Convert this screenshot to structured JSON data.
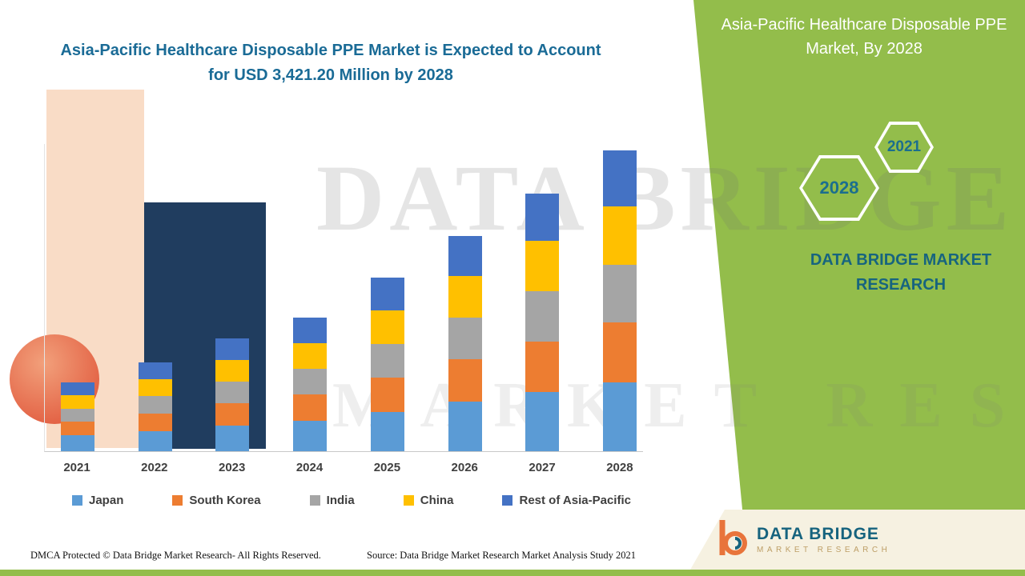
{
  "colors": {
    "green_bg": "#93BD4B",
    "teal": "#1A6B96",
    "cream": "#F6F1E1",
    "axis_label": "#3F3F3F"
  },
  "header": {
    "left_title": "Asia-Pacific Healthcare Disposable PPE Market is Expected to Account for USD 3,421.20 Million by 2028",
    "right_title": "Asia-Pacific Healthcare Disposable PPE Market, By 2028"
  },
  "badges": {
    "hex_2028": "2028",
    "hex_2021": "2021"
  },
  "brand": {
    "name_block": "DATA BRIDGE MARKET RESEARCH",
    "logo_title": "DATA BRIDGE",
    "logo_subtitle": "MARKET RESEARCH"
  },
  "watermark": {
    "line1": "DATA BRIDGE",
    "line2": "MARKET RESEARCH"
  },
  "footer": {
    "dmca": "DMCA Protected © Data Bridge Market Research- All Rights Reserved.",
    "source": "Source: Data Bridge Market Research Market Analysis Study 2021"
  },
  "chart_data": {
    "type": "bar",
    "stacked": true,
    "title": "Asia-Pacific Healthcare Disposable PPE Market is Expected to Account for USD 3,421.20 Million by 2028",
    "unit": "USD Million",
    "xlabel": "",
    "ylabel": "",
    "ylim": [
      0,
      3500
    ],
    "grid": false,
    "legend_position": "bottom",
    "categories": [
      "2021",
      "2022",
      "2023",
      "2024",
      "2025",
      "2026",
      "2027",
      "2028"
    ],
    "series": [
      {
        "name": "Japan",
        "color": "#5B9BD5",
        "values": [
          180,
          230,
          290,
          345,
          450,
          560,
          670,
          780
        ]
      },
      {
        "name": "South Korea",
        "color": "#ED7D31",
        "values": [
          155,
          200,
          255,
          300,
          390,
          485,
          580,
          680
        ]
      },
      {
        "name": "India",
        "color": "#A5A5A5",
        "values": [
          150,
          195,
          245,
          295,
          380,
          475,
          570,
          660
        ]
      },
      {
        "name": "China",
        "color": "#FFC000",
        "values": [
          150,
          195,
          245,
          290,
          380,
          475,
          570,
          665
        ]
      },
      {
        "name": "Rest of Asia-Pacific",
        "color": "#4472C4",
        "values": [
          145,
          190,
          245,
          285,
          370,
          450,
          540,
          636.2
        ]
      }
    ],
    "totals_by_year": [
      780,
      1010,
      1280,
      1515,
      1970,
      2445,
      2930,
      3421.2
    ],
    "highlight_value_2028": "USD 3,421.20 Million"
  }
}
